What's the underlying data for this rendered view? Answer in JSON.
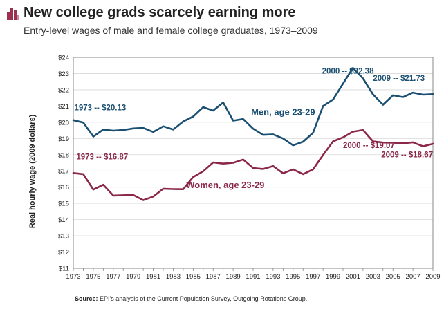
{
  "header": {
    "title": "New college grads scarcely earning more",
    "subtitle": "Entry-level wages of male and female college graduates, 1973–2009"
  },
  "source": {
    "label": "Source:",
    "text": " EPI's analysis of the Current Population Survey, Outgoing Rotations Group."
  },
  "colors": {
    "men": "#1a4f72",
    "women": "#8b2748",
    "logo": "#9b3050"
  },
  "chart_data": {
    "type": "line",
    "title": "New college grads scarcely earning more",
    "subtitle": "Entry-level wages of male and female college graduates, 1973–2009",
    "xlabel": "",
    "ylabel": "Real hourly wage (2009 dollars)",
    "ylim": [
      11,
      24
    ],
    "xlim": [
      1973,
      2009
    ],
    "y_ticks": [
      "$11",
      "$12",
      "$13",
      "$14",
      "$15",
      "$16",
      "$17",
      "$18",
      "$19",
      "$20",
      "$21",
      "$22",
      "$23",
      "$24"
    ],
    "x_ticks": [
      "1973",
      "1975",
      "1977",
      "1979",
      "1981",
      "1983",
      "1985",
      "1987",
      "1989",
      "1991",
      "1993",
      "1995",
      "1997",
      "1999",
      "2001",
      "2003",
      "2005",
      "2007",
      "2009"
    ],
    "grid": true,
    "x": [
      1973,
      1974,
      1975,
      1976,
      1977,
      1978,
      1979,
      1980,
      1981,
      1982,
      1983,
      1984,
      1985,
      1986,
      1987,
      1988,
      1989,
      1990,
      1991,
      1992,
      1993,
      1994,
      1995,
      1996,
      1997,
      1998,
      1999,
      2000,
      2001,
      2002,
      2003,
      2004,
      2005,
      2006,
      2007,
      2008,
      2009
    ],
    "series": [
      {
        "name": "Men, age 23-29",
        "color": "#1a4f72",
        "values": [
          20.13,
          19.98,
          19.12,
          19.55,
          19.48,
          19.52,
          19.62,
          19.65,
          19.4,
          19.75,
          19.55,
          20.05,
          20.35,
          20.93,
          20.72,
          21.22,
          20.1,
          20.2,
          19.6,
          19.22,
          19.25,
          19.0,
          18.58,
          18.8,
          19.35,
          21.0,
          21.4,
          22.38,
          23.35,
          22.7,
          21.72,
          21.08,
          21.66,
          21.55,
          21.82,
          21.7,
          21.73
        ]
      },
      {
        "name": "Women, age 23-29",
        "color": "#8b2748",
        "values": [
          16.87,
          16.8,
          15.85,
          16.15,
          15.48,
          15.5,
          15.52,
          15.2,
          15.42,
          15.9,
          15.88,
          15.87,
          16.62,
          16.98,
          17.52,
          17.45,
          17.5,
          17.7,
          17.18,
          17.12,
          17.3,
          16.85,
          17.1,
          16.8,
          17.1,
          17.98,
          18.82,
          19.07,
          19.42,
          19.52,
          18.82,
          18.75,
          18.74,
          18.7,
          18.76,
          18.52,
          18.67
        ]
      }
    ],
    "annotations": [
      {
        "text": "1973 -- $20.13",
        "series": 0
      },
      {
        "text": "2000 -- $22.38",
        "series": 0
      },
      {
        "text": "2009 -- $21.73",
        "series": 0
      },
      {
        "text": "1973 -- $16.87",
        "series": 1
      },
      {
        "text": "2000 -- $19.07",
        "series": 1
      },
      {
        "text": "2009 -- $18.67",
        "series": 1
      }
    ]
  }
}
